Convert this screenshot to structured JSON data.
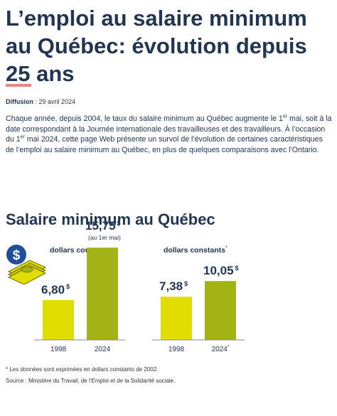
{
  "title": "L’emploi au salaire minimum au Québec: évolution depuis 25 ans",
  "pubdate": {
    "label": "Diffusion",
    "value": " : 29 avril 2024"
  },
  "intro": {
    "p1": "Chaque année, depuis 2004, le taux du salaire minimum au Québec augmente le 1",
    "sup1": "er",
    "p2": " mai, soit à la date correspondant à la Journée internationale des travailleuses et des travailleurs. À l’occasion du 1",
    "sup2": "er",
    "p3": " mai 2024, cette page Web présente un survol de l’évolution de certaines caractéristiques de l’emploi au salaire minimum au Québec, en plus de quelques comparaisons avec l’Ontario."
  },
  "section_title": "Salaire minimum au Québec",
  "icons": {
    "money": "money-bundle-dollar-icon"
  },
  "colors": {
    "bar_1998": "#e2dd00",
    "bar_2024": "#a2b313",
    "accent": "#e58a7a",
    "text": "#223654",
    "icon_blue": "#1f4e9b"
  },
  "chart_data": [
    {
      "type": "bar",
      "title": "dollars courants",
      "categories": [
        "1998",
        "2024"
      ],
      "values": [
        6.8,
        15.75
      ],
      "value_labels": [
        "6,80",
        "15,75"
      ],
      "unit": "$",
      "note": "(au 1er mai)",
      "ylim": [
        0,
        17
      ]
    },
    {
      "type": "bar",
      "title": "dollars constants",
      "title_mark": "*",
      "categories": [
        "1998",
        "2024"
      ],
      "category_marks": [
        "",
        "*"
      ],
      "values": [
        7.38,
        10.05
      ],
      "value_labels": [
        "7,38",
        "10,05"
      ],
      "unit": "$",
      "ylim": [
        0,
        17
      ]
    }
  ],
  "footnote": "* Les données sont exprimées en dollars constants de 2002.",
  "source": "Source : Ministère du Travail, de l’Emploi et de la Solidarité sociale."
}
